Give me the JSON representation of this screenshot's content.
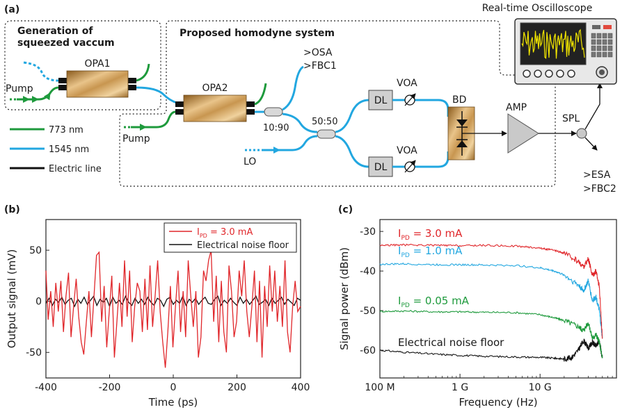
{
  "panel_a": {
    "label": "(a)",
    "gen_title_1": "Generation of",
    "gen_title_2": "squeezed vaccum",
    "homodyne_title": "Proposed homodyne system",
    "opa1": "OPA1",
    "opa2": "OPA2",
    "pump1": "Pump",
    "pump2": "Pump",
    "coupler_1090": "10:90",
    "coupler_5050": "50:50",
    "osa": ">OSA",
    "fbc1": ">FBC1",
    "dl_top": "DL",
    "dl_bottom": "DL",
    "voa_top": "VOA",
    "voa_bottom": "VOA",
    "bd": "BD",
    "amp": "AMP",
    "spl": "SPL",
    "esa": ">ESA",
    "fbc2": ">FBC2",
    "lo": "LO",
    "oscilloscope": "Real-time Oscilloscope",
    "legend": [
      {
        "label": "773 nm",
        "color": "#1e9a3c"
      },
      {
        "label": "1545 nm",
        "color": "#22a7e0"
      },
      {
        "label": "Electric line",
        "color": "#111111"
      }
    ]
  },
  "chart_data": [
    {
      "panel": "(b)",
      "type": "line",
      "xlabel": "Time (ps)",
      "ylabel": "Output signal (mV)",
      "xlim": [
        -400,
        400
      ],
      "ylim": [
        -75,
        80
      ],
      "xticks": [
        -400,
        -200,
        0,
        200,
        400
      ],
      "yticks": [
        -50,
        0,
        50
      ],
      "legend_position": "top-right",
      "series": [
        {
          "name": "I_PD = 3.0 mA",
          "legend_main": "I",
          "legend_sub": "PD",
          "legend_rest": " = 3.0 mA",
          "color": "#e0262a",
          "x": [
            -400,
            -393,
            -385,
            -377,
            -369,
            -361,
            -353,
            -345,
            -337,
            -329,
            -321,
            -313,
            -305,
            -297,
            -289,
            -281,
            -273,
            -265,
            -257,
            -249,
            -241,
            -233,
            -225,
            -217,
            -209,
            -201,
            -193,
            -185,
            -177,
            -169,
            -161,
            -153,
            -145,
            -137,
            -129,
            -121,
            -113,
            -105,
            -97,
            -89,
            -81,
            -73,
            -65,
            -57,
            -49,
            -41,
            -33,
            -25,
            -17,
            -9,
            -1,
            7,
            15,
            23,
            31,
            39,
            47,
            55,
            63,
            71,
            79,
            87,
            95,
            103,
            111,
            119,
            127,
            135,
            143,
            151,
            159,
            167,
            175,
            183,
            191,
            199,
            207,
            215,
            223,
            231,
            239,
            247,
            255,
            263,
            271,
            279,
            287,
            295,
            303,
            311,
            319,
            327,
            335,
            343,
            351,
            359,
            367,
            375,
            383,
            391,
            400
          ],
          "y": [
            30,
            -18,
            10,
            -25,
            18,
            -10,
            20,
            -30,
            5,
            28,
            -35,
            -5,
            22,
            -15,
            -40,
            -52,
            -20,
            10,
            -35,
            5,
            45,
            48,
            -20,
            15,
            -45,
            -10,
            25,
            -55,
            -20,
            18,
            -25,
            40,
            -15,
            30,
            -40,
            -5,
            18,
            10,
            -30,
            22,
            -28,
            35,
            -25,
            5,
            40,
            -10,
            -40,
            -65,
            -30,
            15,
            -45,
            -5,
            30,
            -30,
            10,
            -35,
            40,
            5,
            -25,
            10,
            -55,
            -35,
            30,
            20,
            40,
            50,
            -20,
            25,
            -40,
            20,
            -30,
            -50,
            35,
            10,
            -35,
            -20,
            30,
            5,
            40,
            -10,
            -35,
            -5,
            30,
            -40,
            20,
            -55,
            15,
            -25,
            35,
            -10,
            30,
            -20,
            15,
            -25,
            40,
            -30,
            -50,
            -5,
            20,
            -10,
            -5
          ]
        },
        {
          "name": "Electrical noise floor",
          "legend_main": "Electrical noise floor",
          "color": "#111111",
          "x": [
            -400,
            -390,
            -380,
            -370,
            -360,
            -350,
            -340,
            -330,
            -320,
            -310,
            -300,
            -290,
            -280,
            -270,
            -260,
            -250,
            -240,
            -230,
            -220,
            -210,
            -200,
            -190,
            -180,
            -170,
            -160,
            -150,
            -140,
            -130,
            -120,
            -110,
            -100,
            -90,
            -80,
            -70,
            -60,
            -50,
            -40,
            -30,
            -20,
            -10,
            0,
            10,
            20,
            30,
            40,
            50,
            60,
            70,
            80,
            90,
            100,
            110,
            120,
            130,
            140,
            150,
            160,
            170,
            180,
            190,
            200,
            210,
            220,
            230,
            240,
            250,
            260,
            270,
            280,
            290,
            300,
            310,
            320,
            330,
            340,
            350,
            360,
            370,
            380,
            390,
            400
          ],
          "y": [
            -2,
            3,
            -4,
            2,
            -1,
            4,
            -3,
            1,
            3,
            -5,
            2,
            -2,
            4,
            -3,
            1,
            5,
            -4,
            2,
            -1,
            3,
            -5,
            4,
            -2,
            1,
            -3,
            5,
            -1,
            -4,
            3,
            -2,
            2,
            -3,
            4,
            -1,
            -4,
            3,
            1,
            -5,
            2,
            4,
            -3,
            1,
            -2,
            5,
            -4,
            2,
            -1,
            3,
            -3,
            1,
            4,
            -2,
            -3,
            2,
            5,
            -4,
            1,
            -2,
            3,
            -1,
            -4,
            4,
            -2,
            2,
            -3,
            1,
            5,
            -3,
            -1,
            2,
            -4,
            3,
            -2,
            1,
            4,
            -3,
            2,
            -1,
            -4,
            3,
            1
          ]
        }
      ]
    },
    {
      "panel": "(c)",
      "type": "line",
      "xlabel": "Frequency (Hz)",
      "ylabel": "Signal power (dBm)",
      "xscale": "log",
      "xlim": [
        100000000,
        90000000000
      ],
      "ylim": [
        -67,
        -27
      ],
      "xticks": [
        100000000,
        1000000000,
        10000000000
      ],
      "xtick_labels": [
        "100 M",
        "1 G",
        "10 G"
      ],
      "yticks": [
        -60,
        -50,
        -40,
        -30
      ],
      "series": [
        {
          "name": "I_PD = 3.0 mA",
          "label_main": "I",
          "label_sub": "PD",
          "label_rest": " = 3.0 mA",
          "color": "#e0262a",
          "x": [
            100000000,
            200000000,
            500000000,
            1000000000,
            2000000000,
            5000000000,
            10000000000,
            15000000000,
            20000000000,
            30000000000,
            35000000000,
            40000000000,
            45000000000,
            50000000000,
            55000000000,
            60000000000
          ],
          "y": [
            -33.5,
            -33.4,
            -33.5,
            -33.6,
            -33.5,
            -33.7,
            -34.2,
            -34.8,
            -35.5,
            -37.5,
            -39,
            -37,
            -41,
            -40,
            -44,
            -57
          ]
        },
        {
          "name": "I_PD = 1.0 mA",
          "label_main": "I",
          "label_sub": "PD",
          "label_rest": " = 1.0 mA",
          "color": "#22a7e0",
          "x": [
            100000000,
            200000000,
            500000000,
            1000000000,
            2000000000,
            5000000000,
            10000000000,
            15000000000,
            20000000000,
            30000000000,
            35000000000,
            40000000000,
            45000000000,
            50000000000,
            55000000000,
            60000000000
          ],
          "y": [
            -38.3,
            -38.2,
            -38.4,
            -38.4,
            -38.5,
            -38.6,
            -39.2,
            -40,
            -41,
            -43.5,
            -45,
            -42.5,
            -47.5,
            -46.5,
            -50,
            -57
          ]
        },
        {
          "name": "I_PD = 0.05 mA",
          "label_main": "I",
          "label_sub": "PD",
          "label_rest": " = 0.05 mA",
          "color": "#1e9a3c",
          "x": [
            100000000,
            200000000,
            500000000,
            1000000000,
            2000000000,
            5000000000,
            10000000000,
            15000000000,
            20000000000,
            30000000000,
            35000000000,
            40000000000,
            45000000000,
            50000000000,
            55000000000,
            60000000000
          ],
          "y": [
            -50.2,
            -50.1,
            -50.3,
            -50.3,
            -50.4,
            -50.5,
            -51,
            -51.8,
            -52.5,
            -54,
            -55,
            -53,
            -57,
            -56,
            -58,
            -62
          ]
        },
        {
          "name": "Electrical noise floor",
          "label_main": "Electrical noise floor",
          "color": "#111111",
          "x": [
            100000000,
            200000000,
            500000000,
            1000000000,
            2000000000,
            5000000000,
            10000000000,
            15000000000,
            20000000000,
            25000000000,
            30000000000,
            35000000000,
            40000000000,
            45000000000,
            50000000000,
            55000000000,
            60000000000
          ],
          "y": [
            -60,
            -60.5,
            -61,
            -61.3,
            -61.5,
            -61.7,
            -61.8,
            -62,
            -62.2,
            -61.8,
            -60,
            -57.5,
            -59.5,
            -58,
            -59,
            -57.5,
            -62
          ]
        }
      ]
    }
  ]
}
